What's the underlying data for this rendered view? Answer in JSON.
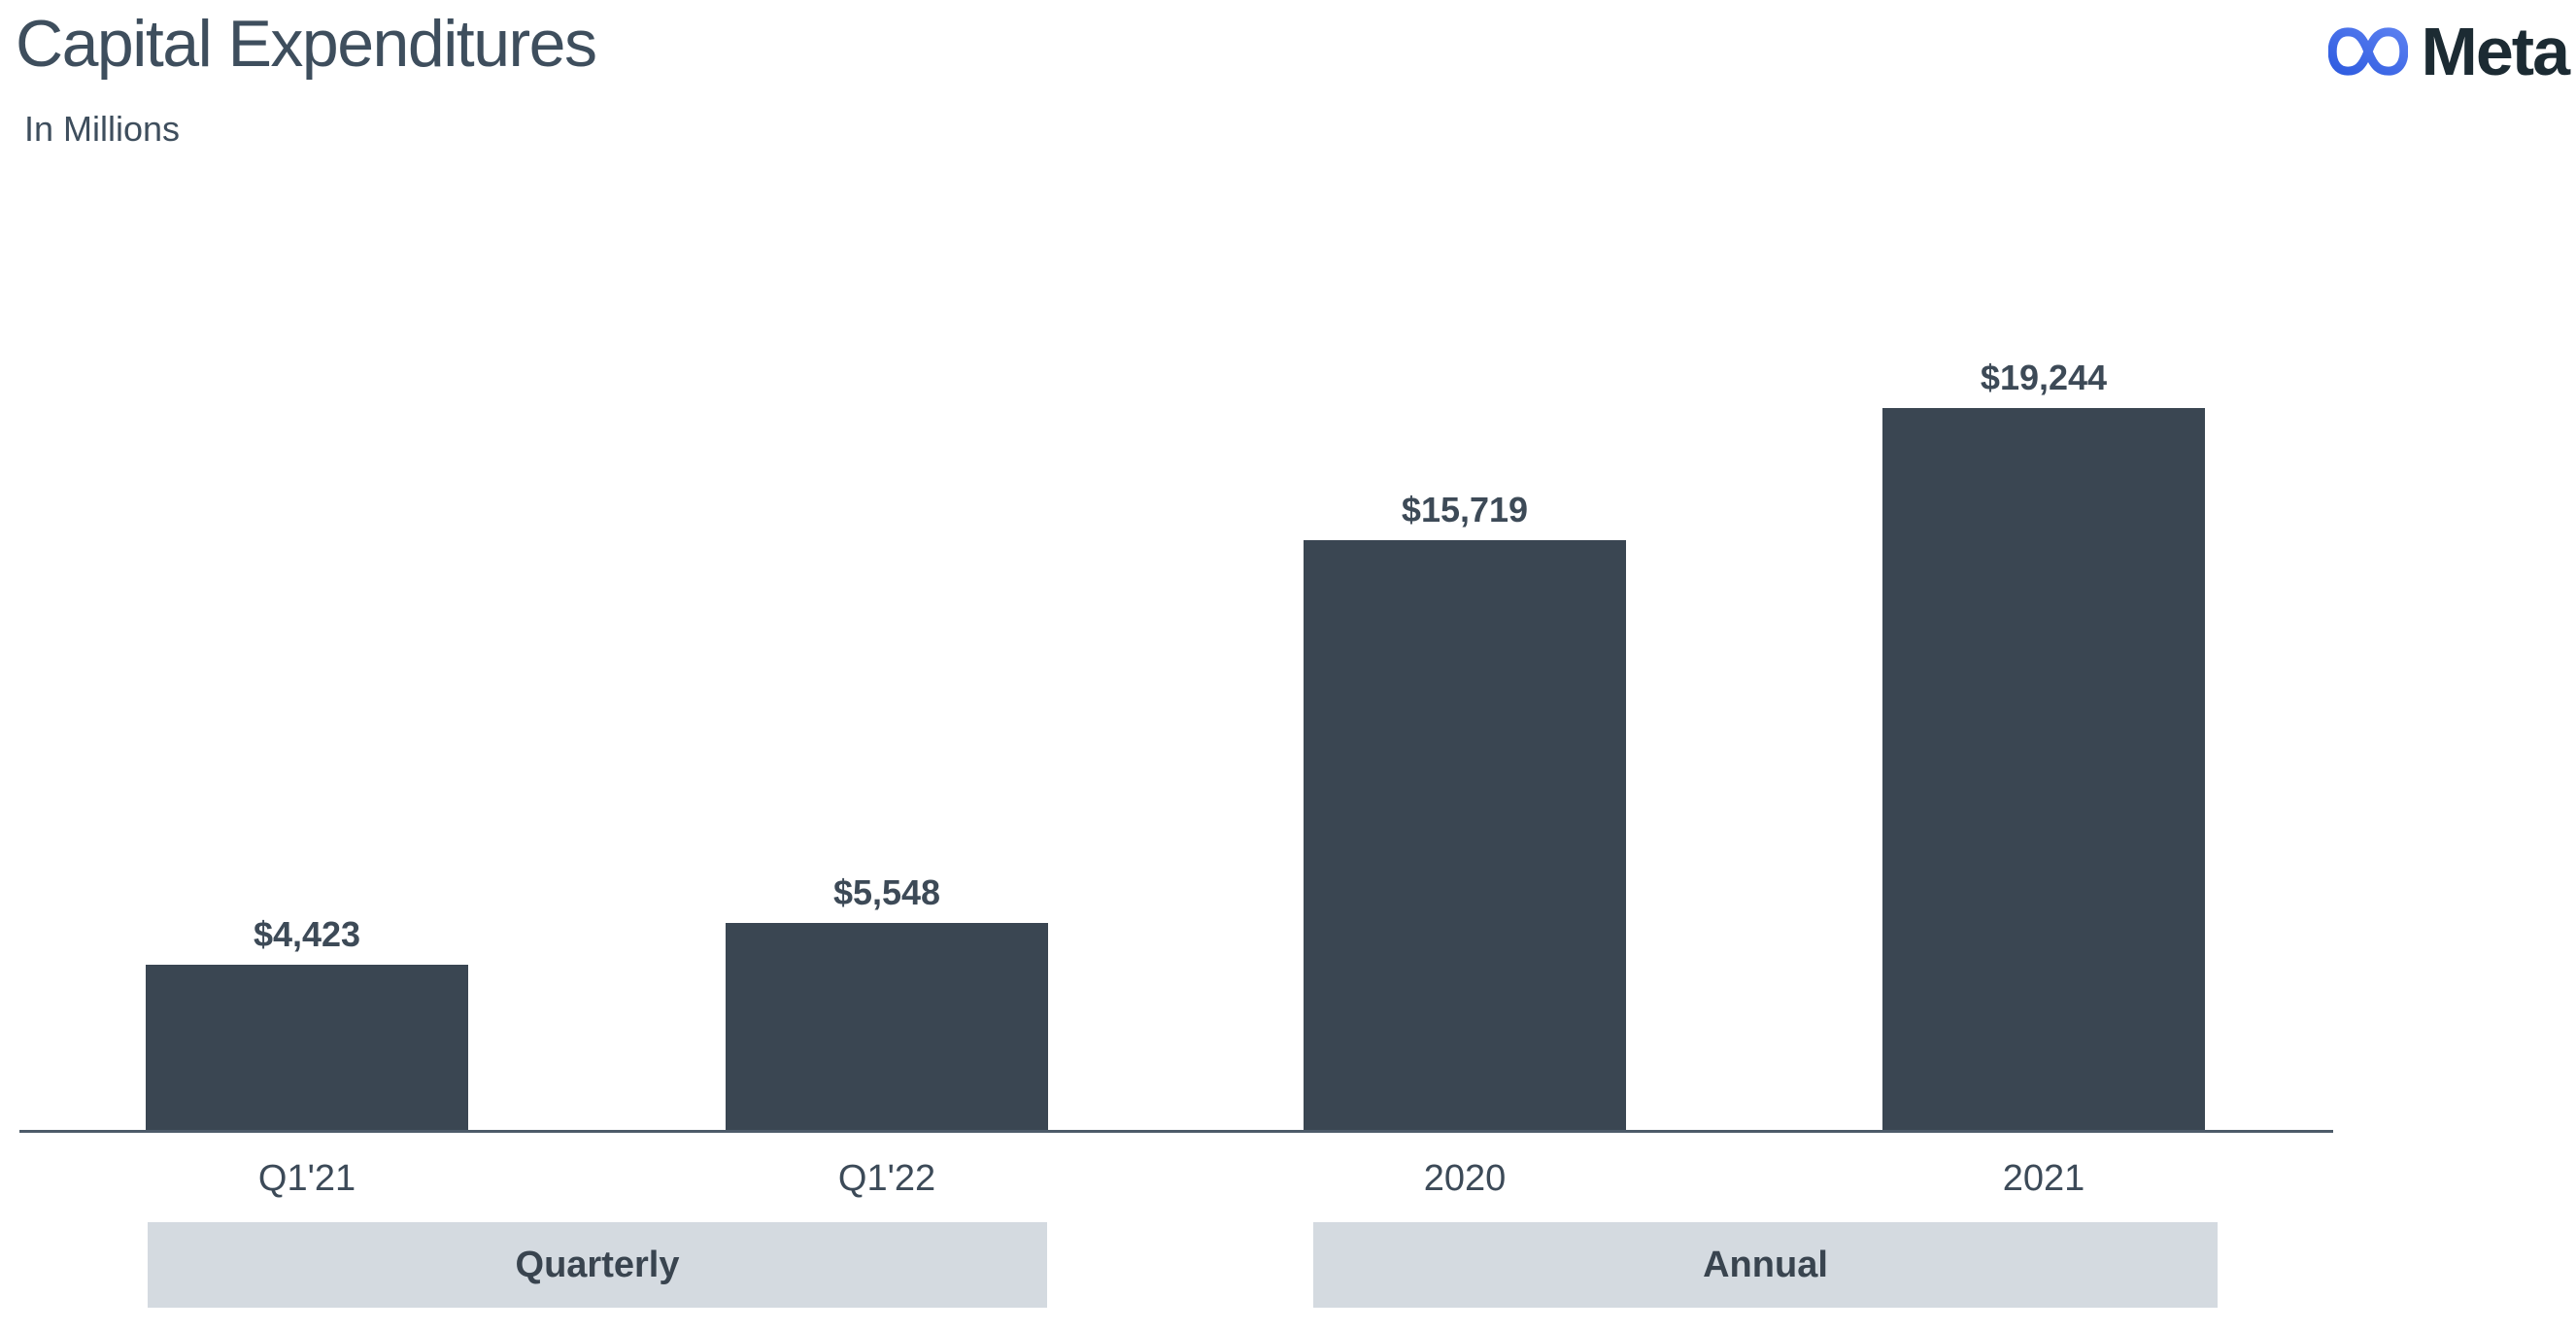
{
  "header": {
    "title": "Capital Expenditures",
    "subtitle": "In Millions",
    "logo_text": "Meta"
  },
  "brand": {
    "logo_gradient_start": "#2f5ce0",
    "logo_gradient_end": "#5a7ff0",
    "wordmark_color": "#1c2b33"
  },
  "chart_data": {
    "type": "bar",
    "title": "Capital Expenditures",
    "subtitle": "In Millions",
    "unit": "USD millions",
    "categories": [
      "Q1'21",
      "Q1'22",
      "2020",
      "2021"
    ],
    "values": [
      4423,
      5548,
      15719,
      19244
    ],
    "value_labels": [
      "$4,423",
      "$5,548",
      "$15,719",
      "$19,244"
    ],
    "groups": [
      {
        "label": "Quarterly",
        "categories": [
          "Q1'21",
          "Q1'22"
        ]
      },
      {
        "label": "Annual",
        "categories": [
          "2020",
          "2021"
        ]
      }
    ],
    "ylim": [
      0,
      19244
    ],
    "bar_color": "#3a4652",
    "band_color": "#d4dae0",
    "value_label_color": "#3d4a57",
    "x_label_color": "#3c4a58",
    "axis_line_color": "#4d5b69",
    "gridlines": false,
    "legend_position": "none"
  }
}
